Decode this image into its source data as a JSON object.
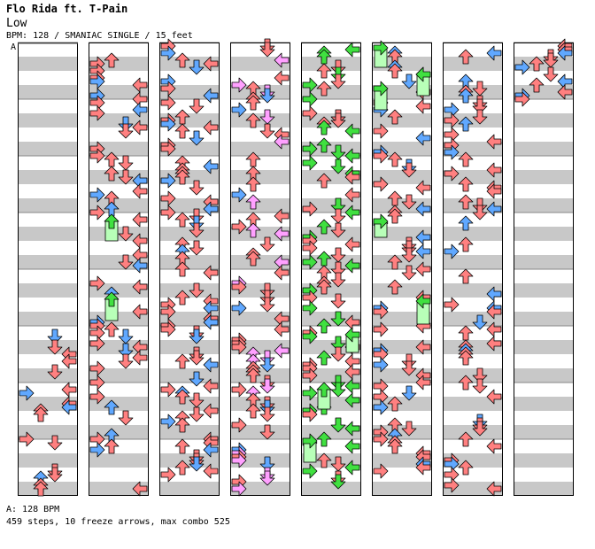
{
  "song": {
    "title": "Flo Rida ft. T-Pain",
    "subtitle": "Low",
    "info": "BPM: 128 / SMANIAC SINGLE / 15 feet"
  },
  "bpm_marker": "A",
  "footer": {
    "bpm_line": "A: 128 BPM",
    "stats": "459 steps, 10 freeze arrows, max combo 525"
  },
  "colors": {
    "red": "#ff8080",
    "blue": "#60a8ff",
    "pink": "#ffa0ff",
    "green": "#40e040",
    "freeze": "#b8ffb8",
    "stripe": "#c8c8c8"
  },
  "chart_data": {
    "type": "step-chart",
    "columns": 8,
    "measures_per_column": 8,
    "lanes": [
      "left",
      "down",
      "up",
      "right"
    ],
    "steps": 459,
    "freeze_arrows": 10,
    "max_combo": 525,
    "bpm": 128
  }
}
